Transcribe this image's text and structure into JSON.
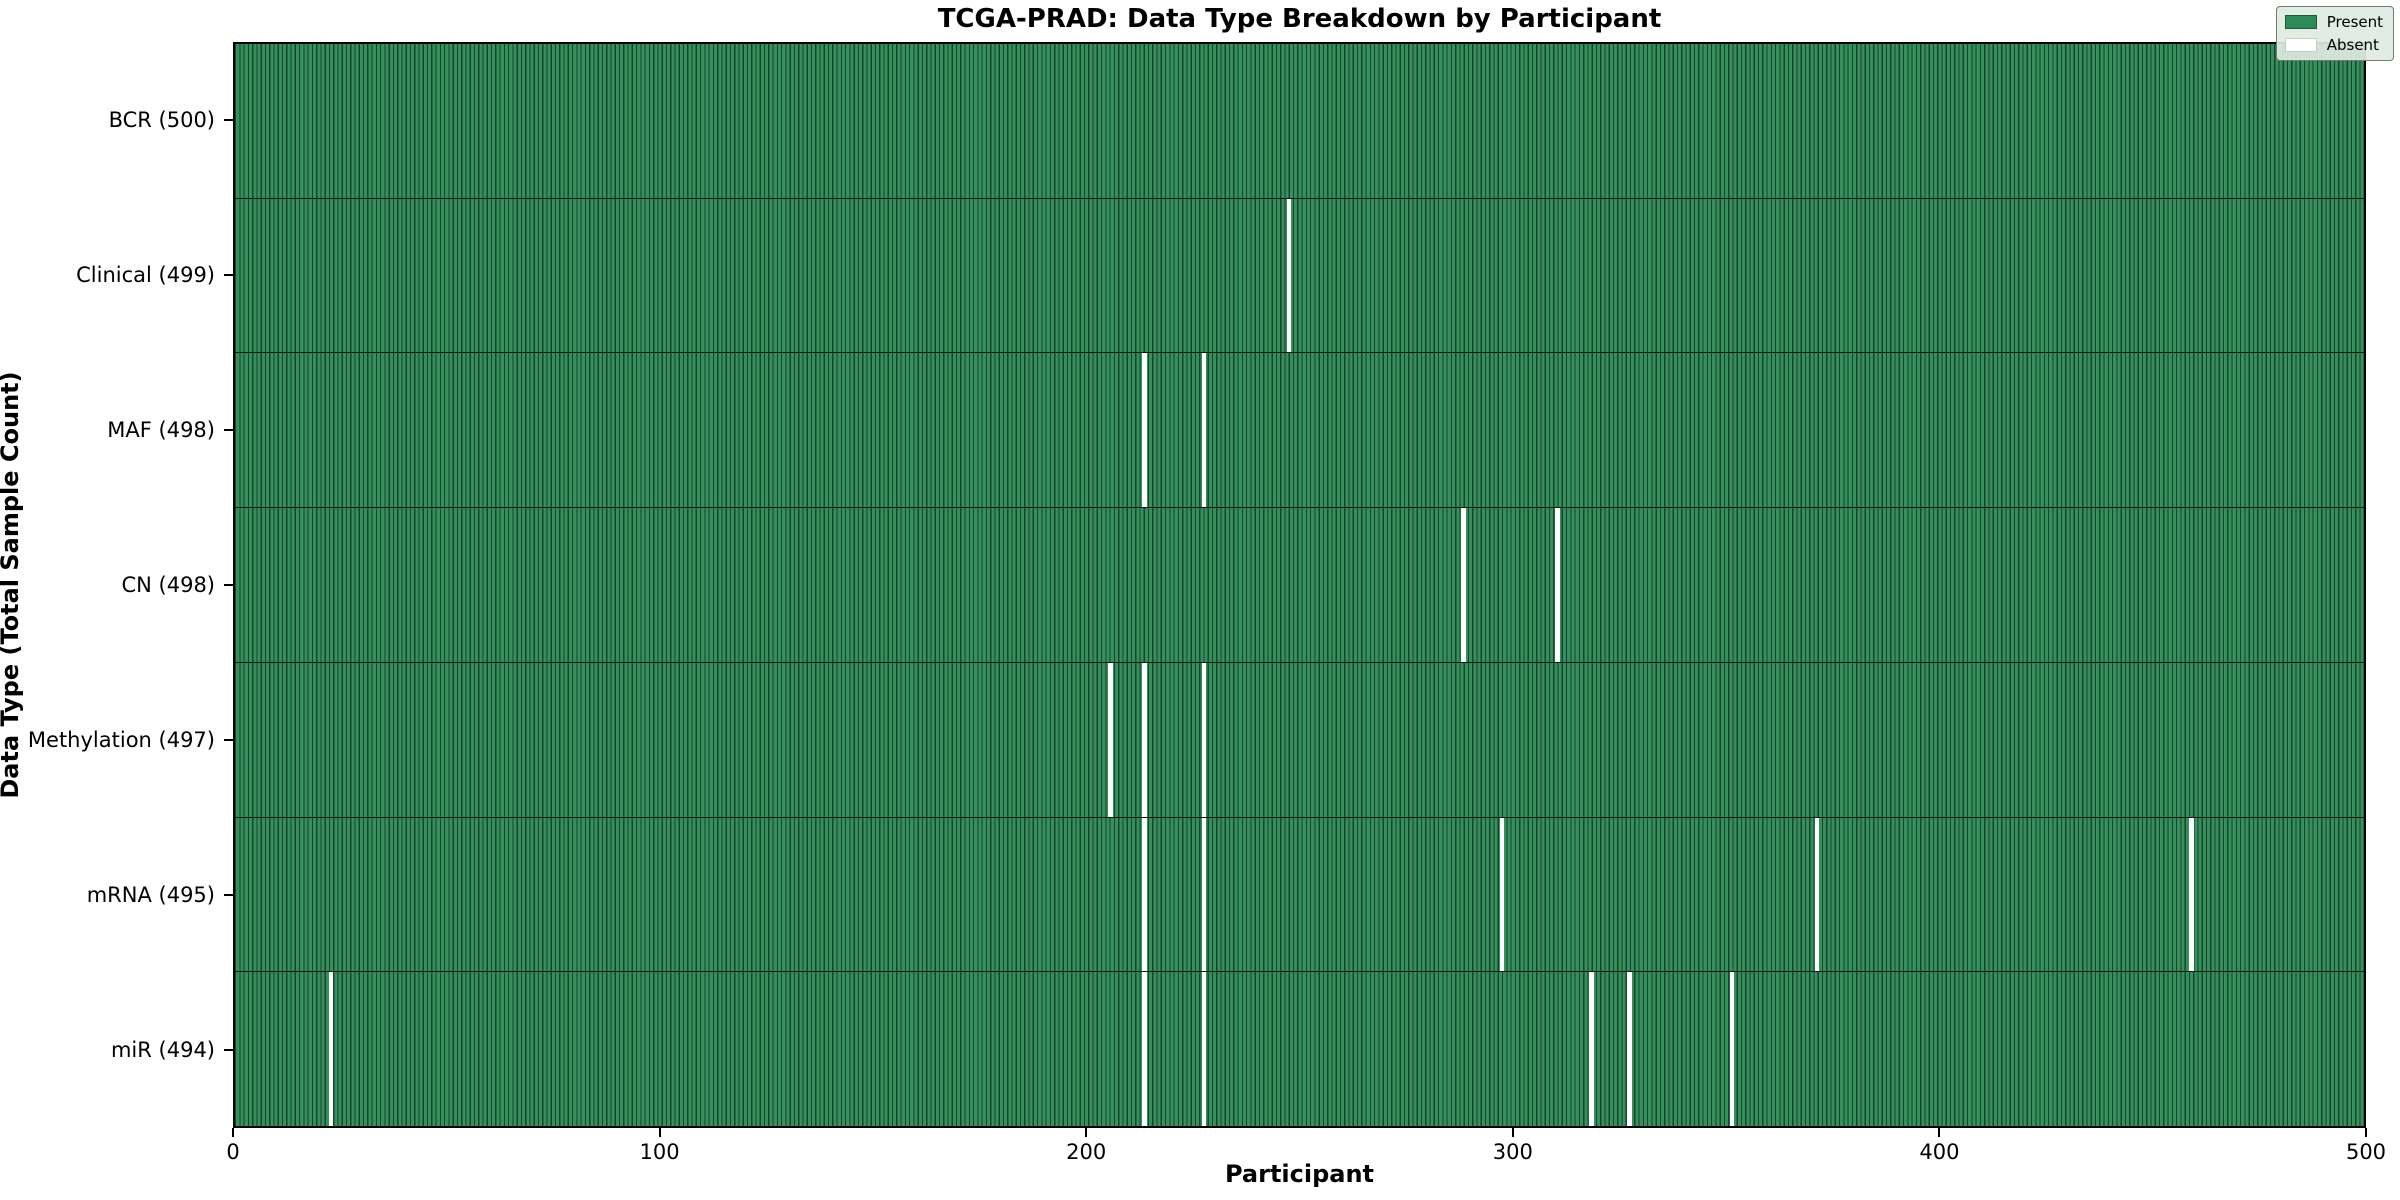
{
  "title": "TCGA-PRAD: Data Type Breakdown by Participant",
  "chart_data": {
    "type": "heatmap",
    "title": "TCGA-PRAD: Data Type Breakdown by Participant",
    "xlabel": "Participant",
    "ylabel": "Data Type (Total Sample Count)",
    "xlim": [
      0,
      500
    ],
    "x_ticks": [
      "0",
      "100",
      "200",
      "300",
      "400",
      "500"
    ],
    "x_tick_values": [
      0,
      100,
      200,
      300,
      400,
      500
    ],
    "n_participants": 500,
    "grid": false,
    "legend_position": "upper right",
    "legend": {
      "entries": [
        {
          "label": "Present",
          "color": "#2e8b57"
        },
        {
          "label": "Absent",
          "color": "#ffffff"
        }
      ]
    },
    "colors": {
      "present": "#2e8b57",
      "absent": "#ffffff",
      "cell_edge": "#10301d",
      "row_divider": "#07190f",
      "plot_border": "#000000"
    },
    "rows": [
      {
        "label": "BCR (500)",
        "data_type": "BCR",
        "total": 500,
        "absent_participants": []
      },
      {
        "label": "Clinical (499)",
        "data_type": "Clinical",
        "total": 499,
        "absent_participants": [
          247
        ]
      },
      {
        "label": "MAF (498)",
        "data_type": "MAF",
        "total": 498,
        "absent_participants": [
          213,
          227
        ]
      },
      {
        "label": "CN (498)",
        "data_type": "CN",
        "total": 498,
        "absent_participants": [
          288,
          310
        ]
      },
      {
        "label": "Methylation (497)",
        "data_type": "Methylation",
        "total": 497,
        "absent_participants": [
          205,
          213,
          227
        ]
      },
      {
        "label": "mRNA (495)",
        "data_type": "mRNA",
        "total": 495,
        "absent_participants": [
          213,
          227,
          297,
          371,
          459
        ]
      },
      {
        "label": "miR (494)",
        "data_type": "miR",
        "total": 494,
        "absent_participants": [
          22,
          213,
          227,
          318,
          327,
          351
        ]
      }
    ]
  }
}
